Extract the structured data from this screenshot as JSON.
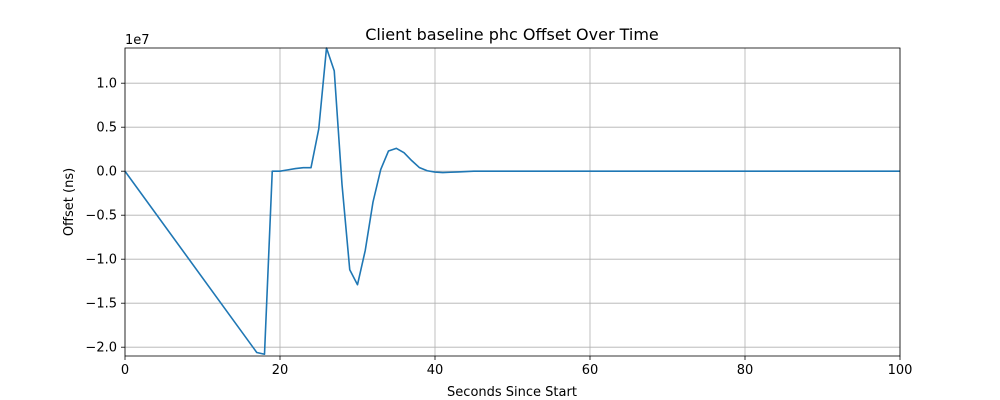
{
  "chart_data": {
    "type": "line",
    "title": "Client baseline phc Offset Over Time",
    "xlabel": "Seconds Since Start",
    "ylabel": "Offset (ns)",
    "y_multiplier_label": "1e7",
    "xlim": [
      0,
      100
    ],
    "ylim": [
      -21000000,
      14000000
    ],
    "x_ticks": [
      0,
      20,
      40,
      60,
      80,
      100
    ],
    "x_tick_labels": [
      "0",
      "20",
      "40",
      "60",
      "80",
      "100"
    ],
    "y_ticks": [
      -20000000,
      -15000000,
      -10000000,
      -5000000,
      0,
      5000000,
      10000000
    ],
    "y_tick_labels": [
      "−2.0",
      "−1.5",
      "−1.0",
      "−0.5",
      "0.0",
      "0.5",
      "1.0"
    ],
    "grid": true,
    "series_color": "#1f77b4",
    "series": [
      {
        "x": [
          0,
          17,
          18,
          19,
          20,
          21,
          22,
          23,
          24,
          25,
          26,
          27,
          28,
          29,
          30,
          31,
          32,
          33,
          34,
          35,
          36,
          37,
          38,
          39,
          40,
          41,
          42,
          43,
          44,
          45,
          50,
          60,
          70,
          80,
          90,
          100
        ],
        "values": [
          0,
          -20600000,
          -20800000,
          0,
          0,
          150000,
          300000,
          400000,
          400000,
          4800000,
          14000000,
          11400000,
          -1500000,
          -11200000,
          -12900000,
          -9000000,
          -3500000,
          200000,
          2300000,
          2600000,
          2100000,
          1200000,
          400000,
          50000,
          -100000,
          -150000,
          -120000,
          -80000,
          -40000,
          0,
          0,
          0,
          0,
          0,
          0,
          0
        ]
      }
    ]
  }
}
